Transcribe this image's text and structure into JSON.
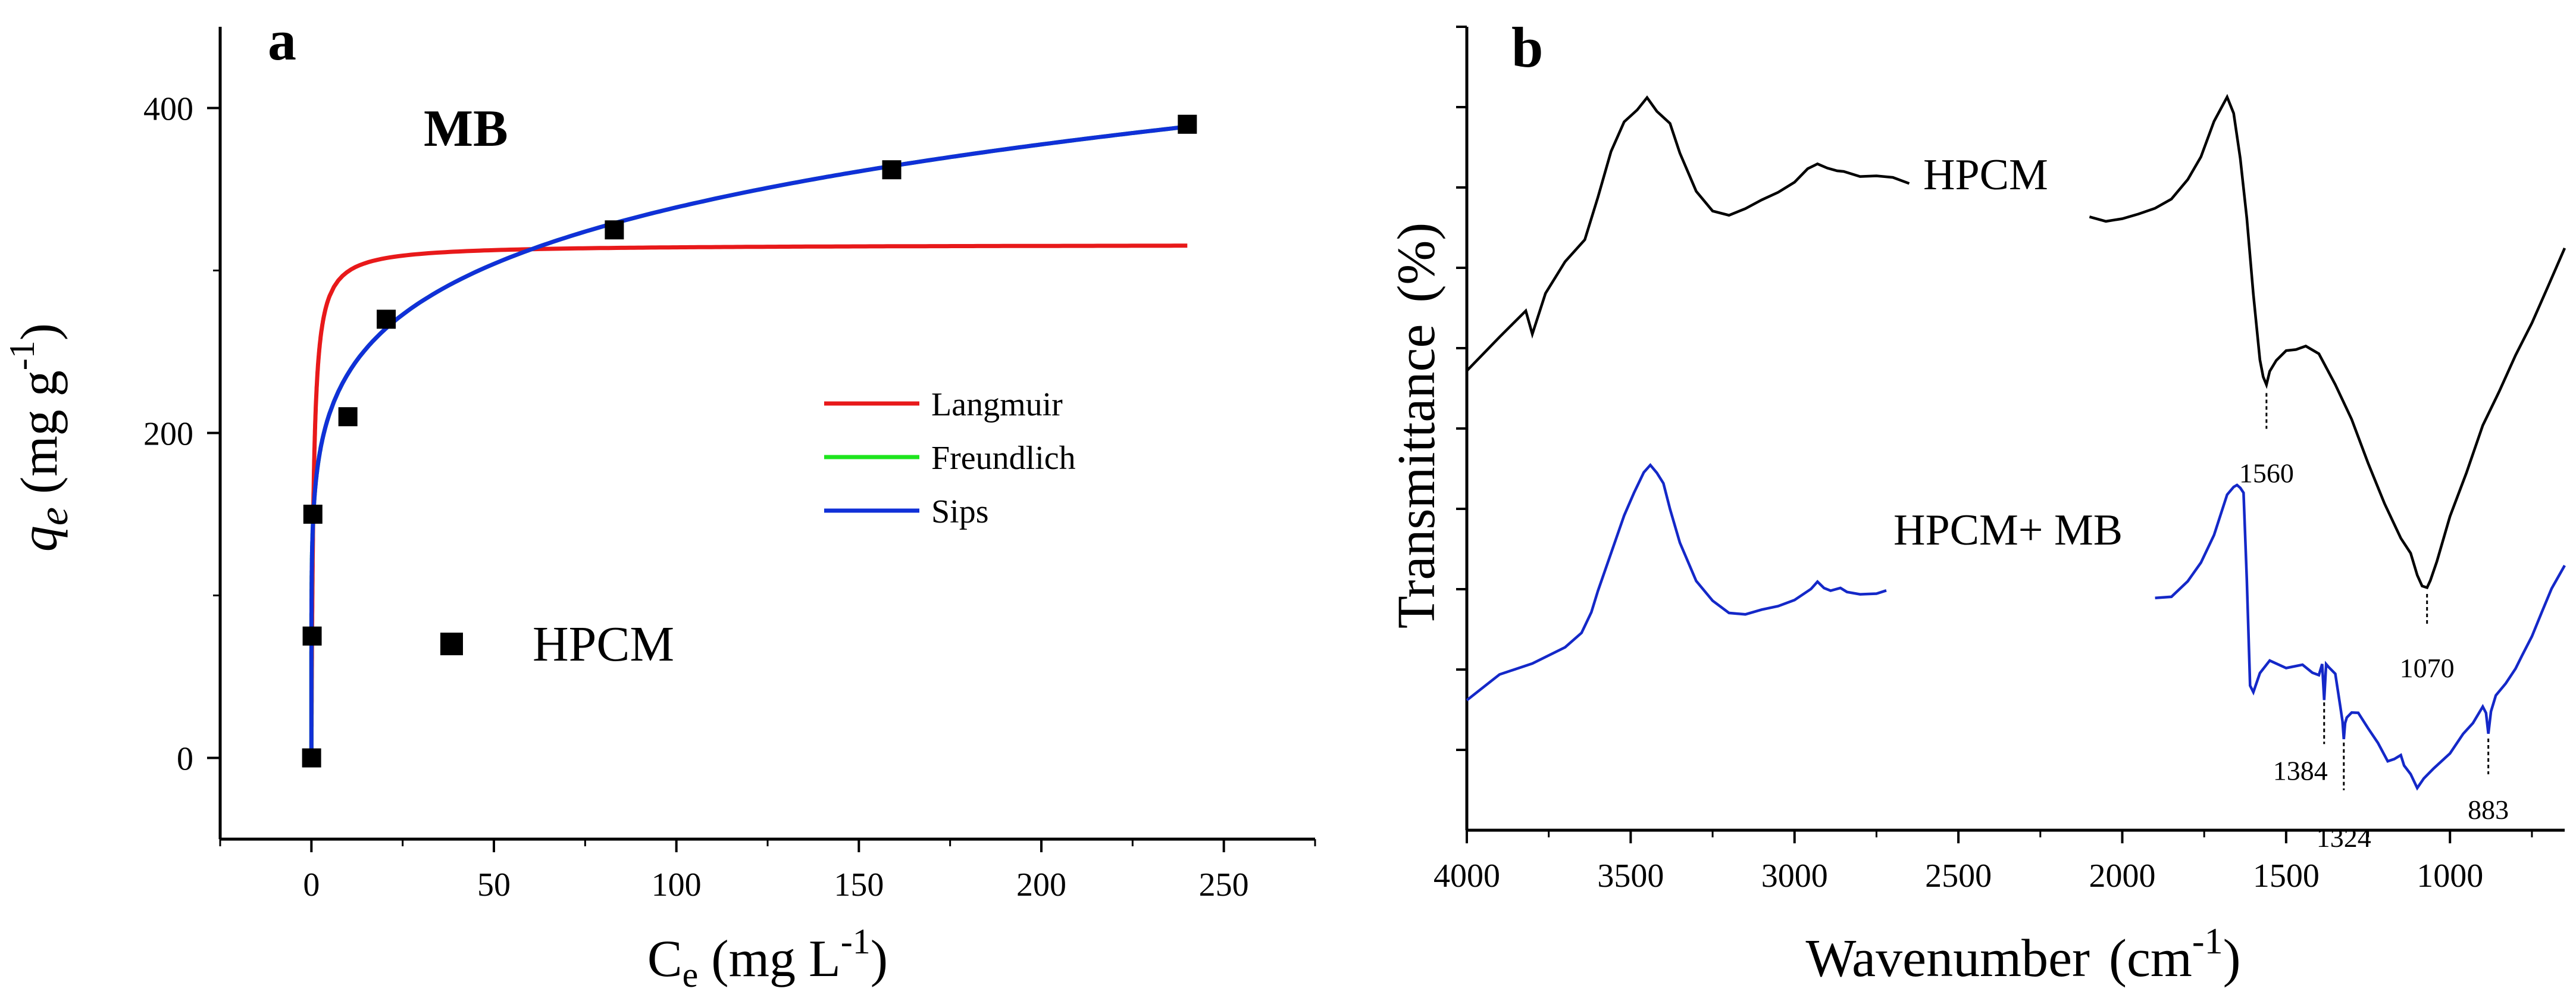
{
  "colors": {
    "axis": "#000000",
    "langmuir": "#e8191a",
    "freundlich": "#1ee51e",
    "sips": "#1030d8",
    "hpcm_line": "#000000",
    "hpcm_mb_line": "#1428c8"
  },
  "chart_data": [
    {
      "panel": "a",
      "type": "scatter",
      "title": "MB",
      "xlabel": "C",
      "xlabel_sub": "e",
      "xlabel_unit": "(mg L",
      "xlabel_sup": "-1",
      "xlabel_close": ")",
      "ylabel": "q",
      "ylabel_sub": "e",
      "ylabel_unit": "(mg g",
      "ylabel_sup": "-1",
      "ylabel_close": ")",
      "xlim": [
        -25,
        275
      ],
      "ylim": [
        -50,
        450
      ],
      "xticks": [
        0,
        50,
        100,
        150,
        200,
        250
      ],
      "xtick_labels": [
        "0",
        "50",
        "100",
        "150",
        "200",
        "250"
      ],
      "yticks": [
        0,
        200,
        400
      ],
      "ytick_labels": [
        "0",
        "200",
        "400"
      ],
      "legend": {
        "placement": "center-right",
        "entries": [
          "Langmuir",
          "Freundlich",
          "Sips"
        ]
      },
      "marker_legend": "HPCM",
      "points": {
        "name": "HPCM",
        "x": [
          0.05,
          0.2,
          0.4,
          10,
          20.5,
          83,
          159,
          240
        ],
        "y": [
          0,
          75,
          150,
          210,
          270,
          325,
          362,
          390
        ]
      },
      "models": [
        {
          "name": "Langmuir",
          "type": "langmuir",
          "qm": 316,
          "KL": 1.8
        },
        {
          "name": "Freundlich",
          "type": "freundlich",
          "KF": 165,
          "n": 6.4
        },
        {
          "name": "Sips",
          "type": "freundlich",
          "KF": 165,
          "n": 6.4
        }
      ]
    },
    {
      "panel": "b",
      "type": "line",
      "xlabel": "Wavenumber",
      "xlabel_unit": "(cm",
      "xlabel_sup": "-1",
      "xlabel_close": ")",
      "ylabel": "Transmittance",
      "ylabel_unit": "(%)",
      "xlim": [
        4000,
        650
      ],
      "ylim": [
        0,
        100
      ],
      "xticks": [
        4000,
        3500,
        3000,
        2500,
        2000,
        1500,
        1000
      ],
      "xtick_labels": [
        "4000",
        "3500",
        "3000",
        "2500",
        "2000",
        "1500",
        "1000"
      ],
      "yticks": [
        10,
        20,
        30,
        40,
        50,
        60,
        70,
        80,
        90,
        100
      ],
      "series": [
        {
          "name": "HPCM",
          "segments": [
            {
              "x": [
                4000,
                3900,
                3820,
                3800,
                3760,
                3700,
                3640,
                3600,
                3560,
                3520,
                3480,
                3450,
                3420,
                3380,
                3350,
                3300,
                3250,
                3200,
                3150,
                3100,
                3050,
                3000,
                2960,
                2930,
                2900,
                2870,
                2850,
                2800,
                2750,
                2700,
                2650
              ],
              "y": [
                57,
                61,
                65,
                62,
                67,
                71,
                74,
                79,
                84,
                88,
                90,
                91,
                90,
                88,
                84,
                79.5,
                77.5,
                77,
                77.5,
                78.5,
                79.5,
                80.5,
                82,
                83,
                82,
                82.5,
                82,
                81.5,
                81.5,
                81.5,
                81
              ]
            },
            {
              "x": [
                2100,
                2050,
                2000,
                1950,
                1900,
                1850,
                1800,
                1760,
                1720,
                1700,
                1680,
                1660,
                1640,
                1620,
                1600,
                1580,
                1570,
                1560,
                1550,
                1530,
                1500,
                1470,
                1440,
                1400,
                1350,
                1300,
                1250,
                1200,
                1150,
                1120,
                1100,
                1085,
                1070,
                1060,
                1040,
                1000,
                950,
                900,
                850,
                800,
                750,
                700,
                650
              ],
              "y": [
                76.5,
                76,
                76,
                76.2,
                77,
                78.5,
                81,
                84,
                88,
                90,
                91,
                89.5,
                84,
                76,
                67,
                58.5,
                56,
                55,
                57,
                58.5,
                59.5,
                60,
                60.5,
                59,
                55,
                51,
                46,
                41,
                36.5,
                34,
                32,
                30.5,
                30,
                31,
                34,
                39,
                44,
                50,
                54.5,
                59,
                63,
                68,
                73
              ]
            }
          ],
          "label": "HPCM",
          "annotations": [
            {
              "x": 1560,
              "label": "1560"
            },
            {
              "x": 1070,
              "label": "1070"
            }
          ]
        },
        {
          "name": "HPCM+ MB",
          "segments": [
            {
              "x": [
                4000,
                3900,
                3800,
                3700,
                3650,
                3620,
                3600,
                3560,
                3520,
                3490,
                3460,
                3440,
                3420,
                3400,
                3380,
                3350,
                3300,
                3250,
                3200,
                3150,
                3100,
                3050,
                3000,
                2950,
                2930,
                2910,
                2890,
                2860,
                2840,
                2800,
                2750,
                2720
              ],
              "y": [
                16,
                19,
                21,
                23,
                25,
                27,
                30,
                34,
                39,
                42,
                44.5,
                45.5,
                45,
                43,
                40,
                35.5,
                31,
                29,
                27.5,
                27,
                27.5,
                28,
                28.5,
                29.5,
                31,
                30,
                29.5,
                30.5,
                29.5,
                29.5,
                29.5,
                29.5
              ]
            },
            {
              "x": [
                1900,
                1850,
                1800,
                1760,
                1720,
                1700,
                1680,
                1660,
                1650,
                1640,
                1630,
                1620,
                1610,
                1600,
                1580,
                1550,
                1500,
                1450,
                1420,
                1400,
                1390,
                1384,
                1378,
                1370,
                1350,
                1335,
                1328,
                1324,
                1320,
                1315,
                1300,
                1280,
                1250,
                1220,
                1190,
                1170,
                1150,
                1140,
                1120,
                1100,
                1080,
                1050,
                1000,
                960,
                930,
                900,
                890,
                883,
                875,
                860,
                830,
                800,
                780,
                750,
                720,
                690,
                650
              ],
              "y": [
                28.5,
                29,
                31,
                33.5,
                36.5,
                39.5,
                41.5,
                43,
                43.5,
                43,
                42,
                31,
                18,
                17.5,
                19.5,
                21,
                20,
                20.5,
                20,
                19,
                20.5,
                16.5,
                20.5,
                20.5,
                19,
                15.5,
                13.5,
                11.5,
                13.5,
                14.5,
                14.5,
                14.5,
                13,
                11,
                8.5,
                8.5,
                9.5,
                8,
                6.5,
                5.5,
                6.5,
                8,
                9.5,
                11.5,
                13.5,
                15,
                14.5,
                12,
                15,
                17,
                18.5,
                20,
                21.5,
                24,
                27,
                30,
                33.5
              ]
            }
          ],
          "label": "HPCM+ MB",
          "annotations": [
            {
              "x": 1384,
              "label": "1384"
            },
            {
              "x": 1324,
              "label": "1324"
            },
            {
              "x": 883,
              "label": "883"
            }
          ]
        }
      ]
    }
  ]
}
